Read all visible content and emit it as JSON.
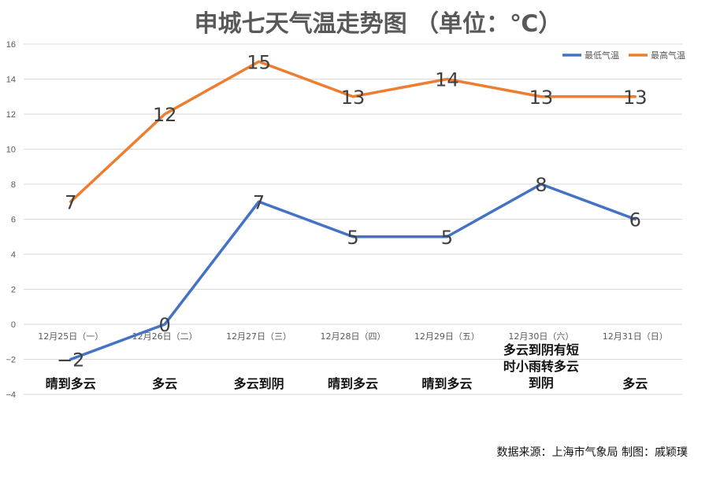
{
  "chart_data": {
    "type": "line",
    "title": "申城七天气温走势图     （单位：℃）",
    "categories": [
      "12月25日（一）",
      "12月26日（二）",
      "12月27日（三）",
      "12月28日（四）",
      "12月29日（五）",
      "12月30日（六）",
      "12月31日（日）"
    ],
    "series": [
      {
        "name": "最低气温",
        "color": "#4472C4",
        "values": [
          -2,
          0,
          7,
          5,
          5,
          8,
          6
        ]
      },
      {
        "name": "最高气温",
        "color": "#ED7D31",
        "values": [
          7,
          12,
          15,
          13,
          14,
          13,
          13
        ]
      }
    ],
    "weather": [
      [
        "晴到多云"
      ],
      [
        "多云"
      ],
      [
        "多云到阴"
      ],
      [
        "晴到多云"
      ],
      [
        "晴到多云"
      ],
      [
        "多云到阴有短",
        "时小雨转多云",
        "到阴"
      ],
      [
        "多云"
      ]
    ],
    "ylim": [
      -4,
      16
    ],
    "ytick_step": 2,
    "grid": true,
    "legend_position": "top-right",
    "source": "数据来源：上海市气象局   制图：戚颖璞"
  }
}
